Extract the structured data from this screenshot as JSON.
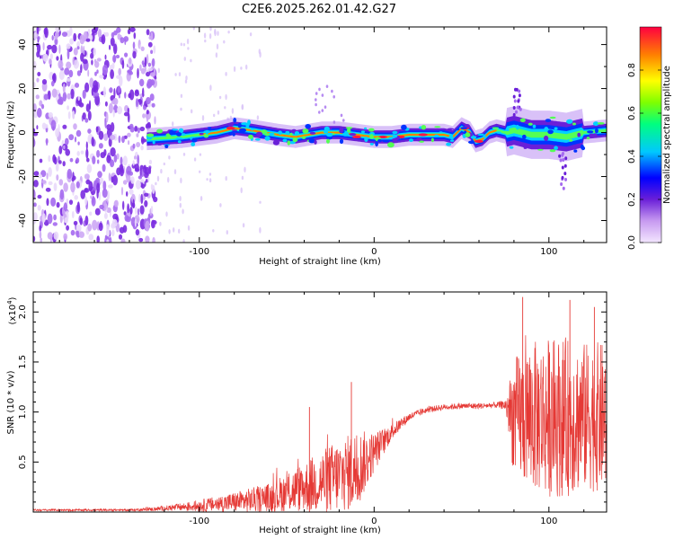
{
  "title": "C2E6.2025.262.01.42.G27",
  "chart_data": [
    {
      "type": "heatmap",
      "name": "spectrogram",
      "xlabel": "Height of straight line (km)",
      "ylabel": "Frequency (Hz)",
      "xlim": [
        -195,
        133
      ],
      "ylim": [
        -50,
        48
      ],
      "xticks": [
        -100,
        0,
        100
      ],
      "xtick_labels": [
        "-100",
        "0",
        "100"
      ],
      "yticks": [
        -40,
        -20,
        0,
        20,
        40
      ],
      "ytick_labels": [
        "-40",
        "-20",
        "0",
        "20",
        "40"
      ],
      "colorbar": {
        "label": "Normalized spectral amplitude",
        "range": [
          0,
          1
        ],
        "ticks": [
          0,
          0.2,
          0.4,
          0.6,
          0.8
        ],
        "tick_labels": [
          "0.0",
          "0.2",
          "0.4",
          "0.6",
          "0.8"
        ]
      },
      "ridge_line": {
        "x": [
          -130,
          -110,
          -90,
          -80,
          -70,
          -55,
          -45,
          -30,
          -20,
          -10,
          0,
          10,
          20,
          30,
          40,
          45,
          50,
          55,
          58,
          62,
          66,
          70,
          75,
          80,
          90,
          100,
          110,
          120,
          133
        ],
        "y": [
          -3,
          -2,
          0,
          2,
          1,
          -1,
          -2,
          0,
          0,
          -1,
          -2,
          -2,
          -1,
          -1,
          -1,
          -2,
          2,
          0,
          -4,
          -3,
          0,
          1,
          0,
          1,
          -1,
          -1,
          -2,
          0,
          1
        ]
      },
      "noise_region_x": [
        -195,
        -125
      ]
    },
    {
      "type": "line",
      "name": "snr",
      "xlabel": "Height of straight line (km)",
      "ylabel": "SNR (10 * v/v)",
      "y_multiplier_label": "(x10",
      "y_multiplier_exp": "4",
      "xlim": [
        -195,
        133
      ],
      "ylim": [
        0,
        2.2
      ],
      "xticks": [
        -100,
        0,
        100
      ],
      "xtick_labels": [
        "-100",
        "0",
        "100"
      ],
      "yticks": [
        0.5,
        1.0,
        1.5,
        2.0
      ],
      "ytick_labels": [
        "0.5",
        "1.0",
        "1.5",
        "2.0"
      ],
      "color": "#e53935",
      "envelope": {
        "x": [
          -195,
          -140,
          -125,
          -110,
          -95,
          -80,
          -60,
          -40,
          -25,
          -10,
          0,
          10,
          20,
          30,
          40,
          50,
          60,
          70,
          75,
          80,
          90,
          100,
          110,
          120,
          133
        ],
        "base": [
          0.02,
          0.02,
          0.03,
          0.05,
          0.07,
          0.1,
          0.14,
          0.25,
          0.33,
          0.42,
          0.6,
          0.8,
          0.95,
          1.02,
          1.05,
          1.06,
          1.06,
          1.07,
          1.07,
          0.95,
          0.95,
          0.95,
          0.95,
          0.95,
          0.95
        ],
        "spread": [
          0.01,
          0.01,
          0.02,
          0.04,
          0.07,
          0.1,
          0.15,
          0.25,
          0.35,
          0.4,
          0.2,
          0.08,
          0.04,
          0.03,
          0.03,
          0.03,
          0.03,
          0.03,
          0.05,
          0.6,
          0.75,
          0.8,
          0.8,
          0.75,
          0.75
        ]
      },
      "peaks": [
        {
          "x": -13,
          "y": 1.3
        },
        {
          "x": -37,
          "y": 1.05
        },
        {
          "x": 85,
          "y": 2.15
        },
        {
          "x": 112,
          "y": 2.12
        },
        {
          "x": 126,
          "y": 2.05
        }
      ]
    }
  ]
}
